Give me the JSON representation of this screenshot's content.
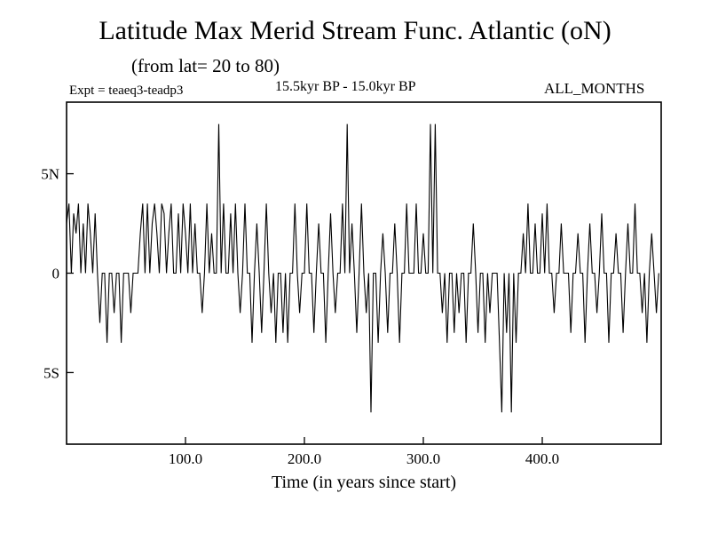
{
  "header": {
    "title": "Latitude Max Merid Stream Func. Atlantic (oN)",
    "subtitle": "(from lat= 20 to 80)",
    "expt_label": "Expt = teaeq3-teadp3",
    "period_label": "15.5kyr BP - 15.0kyr BP",
    "months_label": "ALL_MONTHS"
  },
  "chart_data": {
    "type": "line",
    "title": "Latitude Max Merid Stream Func. Atlantic (oN)",
    "subtitle": "(from lat= 20 to 80)",
    "xlabel": "Time (in years since start)",
    "ylabel": "",
    "xlim": [
      0,
      500
    ],
    "ylim": [
      -8.6,
      8.6
    ],
    "grid": false,
    "legend": "none",
    "line_color": "#000000",
    "background": "#ffffff",
    "x_ticks": [
      {
        "value": 100,
        "label": "100.0"
      },
      {
        "value": 200,
        "label": "200.0"
      },
      {
        "value": 300,
        "label": "300.0"
      },
      {
        "value": 400,
        "label": "400.0"
      }
    ],
    "y_ticks": [
      {
        "value": 5,
        "label": "5N"
      },
      {
        "value": 0,
        "label": "0"
      },
      {
        "value": -5,
        "label": "5S"
      }
    ],
    "x_start": 0,
    "x_step": 2,
    "values": [
      2.5,
      3.5,
      0,
      3,
      2,
      3.5,
      0,
      2.5,
      0,
      3.5,
      2,
      0,
      3,
      0,
      -2.5,
      0,
      0,
      -3.5,
      0,
      0,
      -2,
      0,
      0,
      -3.5,
      0,
      0,
      0,
      -2,
      0,
      0,
      0,
      2,
      3.5,
      0,
      3.5,
      0,
      2.5,
      3.5,
      2,
      0,
      3.5,
      3,
      0,
      2,
      3.5,
      0,
      0,
      3,
      0,
      3.5,
      2,
      0,
      3.5,
      0,
      2.5,
      0,
      0,
      -2,
      0,
      3.5,
      0,
      2,
      0,
      0,
      7.5,
      0,
      3.5,
      0,
      0,
      3,
      0,
      3.5,
      0,
      -2,
      0,
      3.5,
      0,
      0,
      -3.5,
      0,
      2.5,
      0,
      -3,
      0,
      3.5,
      0,
      -2,
      0,
      -3.5,
      0,
      0,
      -3,
      0,
      -3.5,
      0,
      0,
      3.5,
      0,
      -2,
      0,
      0,
      3.5,
      0,
      0,
      -3,
      0,
      2.5,
      0,
      0,
      -3.5,
      0,
      3,
      0,
      -2,
      0,
      0,
      3.5,
      0,
      7.5,
      0,
      2.5,
      0,
      -3,
      0,
      3.5,
      0,
      -2,
      0,
      -7,
      0,
      0,
      -3.5,
      0,
      2,
      0,
      -3,
      0,
      0,
      2.5,
      0,
      -3.5,
      0,
      0,
      3.5,
      0,
      0,
      0,
      3.5,
      0,
      0,
      2,
      0,
      0,
      7.5,
      0,
      7.5,
      0,
      0,
      -2,
      0,
      -3.5,
      0,
      0,
      -3,
      0,
      -2,
      0,
      0,
      -3.5,
      0,
      0,
      2.5,
      0,
      -3,
      0,
      0,
      -3.5,
      0,
      -2,
      0,
      0,
      0,
      -3.5,
      -7,
      0,
      -3,
      0,
      -7,
      0,
      -3.5,
      0,
      0,
      2,
      0,
      3.5,
      0,
      0,
      2.5,
      0,
      0,
      3,
      0,
      3.5,
      0,
      0,
      -2,
      0,
      0,
      2.5,
      0,
      0,
      0,
      -3,
      0,
      0,
      2,
      0,
      0,
      -3.5,
      0,
      2.5,
      0,
      0,
      -2,
      0,
      3,
      0,
      0,
      -3.5,
      0,
      0,
      2,
      0,
      0,
      -3,
      0,
      2.5,
      0,
      0,
      3.5,
      0,
      0,
      -2,
      0,
      -3.5,
      0,
      2,
      0,
      -2,
      0
    ]
  }
}
